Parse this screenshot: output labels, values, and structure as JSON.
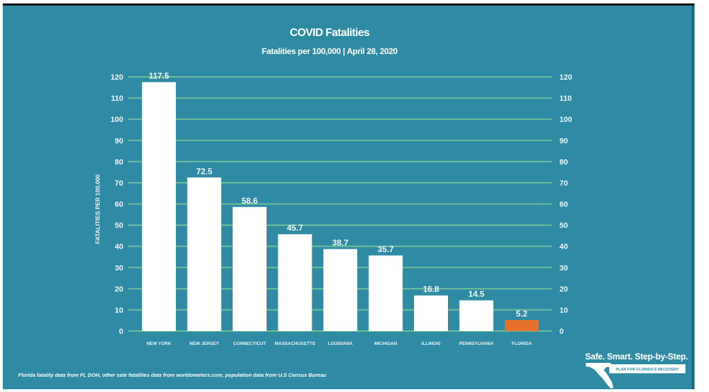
{
  "chart_data": {
    "type": "bar",
    "title": "COVID Fatalities",
    "subtitle": "Fatalities per 100,000 | April 28, 2020",
    "xlabel": "",
    "ylabel": "FATALITIES PER 100,000",
    "ylim": [
      0,
      120
    ],
    "yticks": [
      "0",
      "10",
      "20",
      "30",
      "40",
      "50",
      "60",
      "70",
      "80",
      "90",
      "100",
      "110",
      "120"
    ],
    "grid": true,
    "secondary_y_axis": true,
    "categories": [
      "NEW YORK",
      "NEW JERSEY",
      "CONNECTICUT",
      "MASSACHUSETTS",
      "LOUISIANA",
      "MICHIGAN",
      "ILLINOIS",
      "PENNSYLVANIA",
      "FLORIDA"
    ],
    "values": [
      117.5,
      72.5,
      58.6,
      45.7,
      38.7,
      35.7,
      16.8,
      14.5,
      5.2
    ],
    "value_labels": [
      "117.5",
      "72.5",
      "58.6",
      "45.7",
      "38.7",
      "35.7",
      "16.8",
      "14.5",
      "5.2"
    ],
    "highlight_category": "FLORIDA",
    "source_note": "Florida fatality data from FL DOH, other sate fatalities data from worldometers.com, population data from U.S Census Bureau"
  },
  "colors": {
    "background": "#2f8aa3",
    "bar": "#ffffff",
    "highlight_bar": "#e8702a",
    "gridline": "#6fbf9a",
    "text": "#ffffff"
  },
  "logo": {
    "tagline": "Safe. Smart. Step-by-Step.",
    "subtitle": "PLAN FOR FLORIDA'S RECOVERY"
  }
}
